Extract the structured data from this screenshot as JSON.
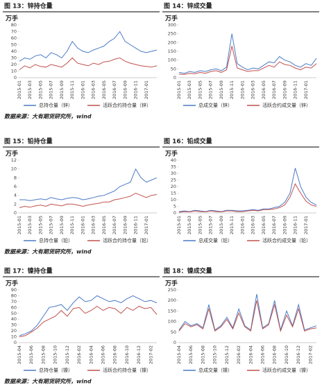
{
  "chart_data": [
    {
      "type": "line",
      "title": "图 13：锌持仓量",
      "y_label": "万手",
      "categories": [
        "2015-01",
        null,
        "2015-03",
        null,
        "2015-05",
        null,
        "2015-07",
        null,
        "2015-09",
        null,
        "2015-11",
        null,
        "2016-01",
        null,
        "2016-03",
        null,
        "2016-05",
        null,
        "2016-07",
        null,
        "2016-09",
        null,
        "2016-11",
        null,
        "2017-01",
        null,
        null
      ],
      "ylim": [
        0,
        80
      ],
      "yticks": [
        0,
        10,
        20,
        30,
        40,
        50,
        60,
        70,
        80
      ],
      "series": [
        {
          "name": "总持仓量（锌）",
          "color": "#4a7ac4",
          "values": [
            25,
            30,
            28,
            33,
            35,
            30,
            38,
            35,
            30,
            40,
            55,
            45,
            40,
            38,
            42,
            45,
            48,
            55,
            60,
            70,
            55,
            50,
            45,
            40,
            38,
            40,
            42
          ]
        },
        {
          "name": "活跃合约持仓量（锌）",
          "color": "#c0504d",
          "values": [
            12,
            18,
            15,
            20,
            17,
            16,
            20,
            18,
            16,
            22,
            30,
            22,
            20,
            18,
            22,
            20,
            24,
            25,
            28,
            30,
            25,
            22,
            20,
            18,
            17,
            16,
            18
          ]
        }
      ]
    },
    {
      "type": "line",
      "title": "图 14：锌成交量",
      "y_label": "万手",
      "categories": [
        "2015-01",
        null,
        "2015-03",
        null,
        "2015-05",
        null,
        "2015-07",
        null,
        "2015-09",
        null,
        "2015-11",
        null,
        "2016-01",
        null,
        "2016-03",
        null,
        "2016-05",
        null,
        "2016-07",
        null,
        "2016-09",
        null,
        "2016-11",
        null,
        "2017-01",
        null,
        null
      ],
      "ylim": [
        0,
        300
      ],
      "yticks": [
        0,
        50,
        100,
        150,
        200,
        250,
        300
      ],
      "series": [
        {
          "name": "总成交量（锌）",
          "color": "#4a7ac4",
          "values": [
            30,
            25,
            35,
            30,
            40,
            35,
            45,
            50,
            40,
            60,
            250,
            80,
            60,
            45,
            55,
            50,
            70,
            90,
            85,
            120,
            100,
            90,
            70,
            60,
            80,
            70,
            110
          ]
        },
        {
          "name": "活跃合约成交量（锌）",
          "color": "#c0504d",
          "values": [
            20,
            18,
            25,
            22,
            30,
            25,
            35,
            40,
            30,
            45,
            180,
            55,
            45,
            35,
            40,
            40,
            55,
            70,
            60,
            90,
            75,
            70,
            55,
            45,
            60,
            55,
            80
          ]
        }
      ]
    },
    {
      "type": "line",
      "title": "图 15：铅持仓量",
      "y_label": "万手",
      "categories": [
        "2015-01",
        null,
        "2015-03",
        null,
        "2015-05",
        null,
        "2015-07",
        null,
        "2015-09",
        null,
        "2015-11",
        null,
        "2016-01",
        null,
        "2016-03",
        null,
        "2016-05",
        null,
        "2016-07",
        null,
        "2016-09",
        null,
        "2016-11",
        null,
        "2017-01",
        null,
        null
      ],
      "ylim": [
        0,
        12
      ],
      "yticks": [
        0,
        2,
        4,
        6,
        8,
        10,
        12
      ],
      "series": [
        {
          "name": "总持仓量（铅）",
          "color": "#4a7ac4",
          "values": [
            3,
            3,
            2.8,
            3,
            3.2,
            3,
            3.5,
            3.2,
            3,
            3.3,
            3.5,
            3.4,
            3,
            3.2,
            3.5,
            3.8,
            4,
            4.5,
            5,
            6,
            6.5,
            7,
            10,
            8,
            7,
            7.5,
            8
          ]
        },
        {
          "name": "活跃合约持仓量（铅）",
          "color": "#c0504d",
          "values": [
            1.2,
            1.5,
            1.3,
            1.6,
            1.8,
            1.5,
            2,
            1.8,
            1.6,
            2,
            2,
            1.8,
            1.5,
            1.8,
            2,
            2.2,
            2.5,
            2.5,
            3,
            3.2,
            3.5,
            3.8,
            4.5,
            4,
            3.5,
            4,
            4.2
          ]
        }
      ]
    },
    {
      "type": "line",
      "title": "图 16：铅成交量",
      "y_label": "万手",
      "categories": [
        "2015-01",
        null,
        "2015-03",
        null,
        "2015-05",
        null,
        "2015-07",
        null,
        "2015-09",
        null,
        "2015-11",
        null,
        "2016-01",
        null,
        "2016-03",
        null,
        "2016-05",
        null,
        "2016-07",
        null,
        "2016-09",
        null,
        "2016-11",
        null,
        "2017-01",
        null,
        null
      ],
      "ylim": [
        0,
        40
      ],
      "yticks": [
        0,
        5,
        10,
        15,
        20,
        25,
        30,
        35,
        40
      ],
      "series": [
        {
          "name": "总成交量（铅）",
          "color": "#4a7ac4",
          "values": [
            1,
            1.5,
            1,
            2,
            1.5,
            1,
            2,
            1.5,
            1,
            2,
            2,
            1.5,
            1.5,
            2,
            2.5,
            2,
            3,
            3,
            4,
            5,
            8,
            15,
            34,
            20,
            12,
            8,
            6
          ]
        },
        {
          "name": "活跃合约成交量（铅）",
          "color": "#c0504d",
          "values": [
            0.5,
            1,
            0.8,
            1.5,
            1,
            0.8,
            1.5,
            1,
            0.8,
            1.5,
            1.5,
            1,
            1,
            1.5,
            2,
            1.5,
            2.5,
            2.5,
            3,
            4,
            6,
            12,
            22,
            15,
            9,
            6,
            5
          ]
        }
      ]
    },
    {
      "type": "line",
      "title": "图 17：镍持仓量",
      "y_label": "万手",
      "categories": [
        "2015-04",
        null,
        "2015-06",
        null,
        "2015-08",
        null,
        "2015-10",
        null,
        "2015-12",
        null,
        "2016-02",
        null,
        "2016-04",
        null,
        "2016-06",
        null,
        "2016-08",
        null,
        "2016-10",
        null,
        "2016-12",
        null,
        "2017-02",
        null
      ],
      "ylim": [
        0,
        90
      ],
      "yticks": [
        0,
        10,
        20,
        30,
        40,
        50,
        60,
        70,
        80,
        90
      ],
      "series": [
        {
          "name": "总持仓量（镍）",
          "color": "#4a7ac4",
          "values": [
            12,
            15,
            20,
            30,
            45,
            60,
            62,
            65,
            55,
            68,
            78,
            70,
            72,
            80,
            75,
            70,
            72,
            68,
            75,
            80,
            75,
            70,
            72,
            68
          ]
        },
        {
          "name": "活跃合约持仓量（镍）",
          "color": "#c0504d",
          "values": [
            10,
            12,
            18,
            25,
            35,
            40,
            45,
            55,
            45,
            58,
            60,
            50,
            55,
            62,
            55,
            60,
            58,
            50,
            60,
            55,
            62,
            58,
            60,
            48
          ]
        }
      ]
    },
    {
      "type": "line",
      "title": "图 18：镍成交量",
      "y_label": "万手",
      "categories": [
        "2015-04",
        null,
        "2015-06",
        null,
        "2015-08",
        null,
        "2015-10",
        null,
        "2015-12",
        null,
        "2016-02",
        null,
        "2016-04",
        null,
        "2016-06",
        null,
        "2016-08",
        null,
        "2016-10",
        null,
        "2016-12",
        null,
        "2017-02",
        null
      ],
      "ylim": [
        0,
        250
      ],
      "yticks": [
        0,
        50,
        100,
        150,
        200,
        250
      ],
      "series": [
        {
          "name": "总成交量（镍）",
          "color": "#4a7ac4",
          "values": [
            60,
            100,
            80,
            90,
            70,
            180,
            60,
            80,
            120,
            70,
            160,
            80,
            60,
            230,
            70,
            90,
            200,
            60,
            150,
            80,
            180,
            60,
            70,
            80
          ]
        },
        {
          "name": "活跃合约成交量（镍）",
          "color": "#c0504d",
          "values": [
            55,
            90,
            75,
            85,
            65,
            160,
            55,
            75,
            110,
            65,
            140,
            75,
            55,
            200,
            65,
            85,
            180,
            55,
            130,
            75,
            160,
            55,
            65,
            70
          ]
        }
      ]
    }
  ],
  "sources": [
    "数据来源：大有期货研究所，wind",
    "数据来源：大有期货研究所，wind",
    "数据来源：大有期货研究所，wind"
  ]
}
